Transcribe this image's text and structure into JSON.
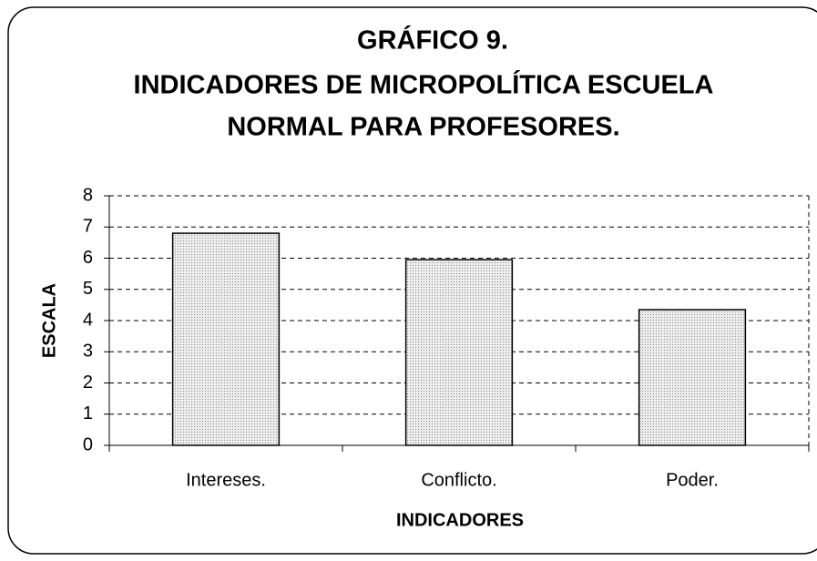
{
  "chart_data": {
    "type": "bar",
    "title": [
      "GRÁFICO 9.",
      "INDICADORES DE MICROPOLÍTICA ESCUELA",
      "NORMAL PARA PROFESORES."
    ],
    "x_label": "INDICADORES",
    "y_label": "ESCALA",
    "categories": [
      "Intereses.",
      "Conflicto.",
      "Poder."
    ],
    "values": [
      6.8,
      5.95,
      4.35
    ],
    "color": "#d4d4d4",
    "ylim": [
      0,
      8
    ],
    "yticks": [
      0,
      1,
      2,
      3,
      4,
      5,
      6,
      7,
      8
    ],
    "grid": true
  }
}
